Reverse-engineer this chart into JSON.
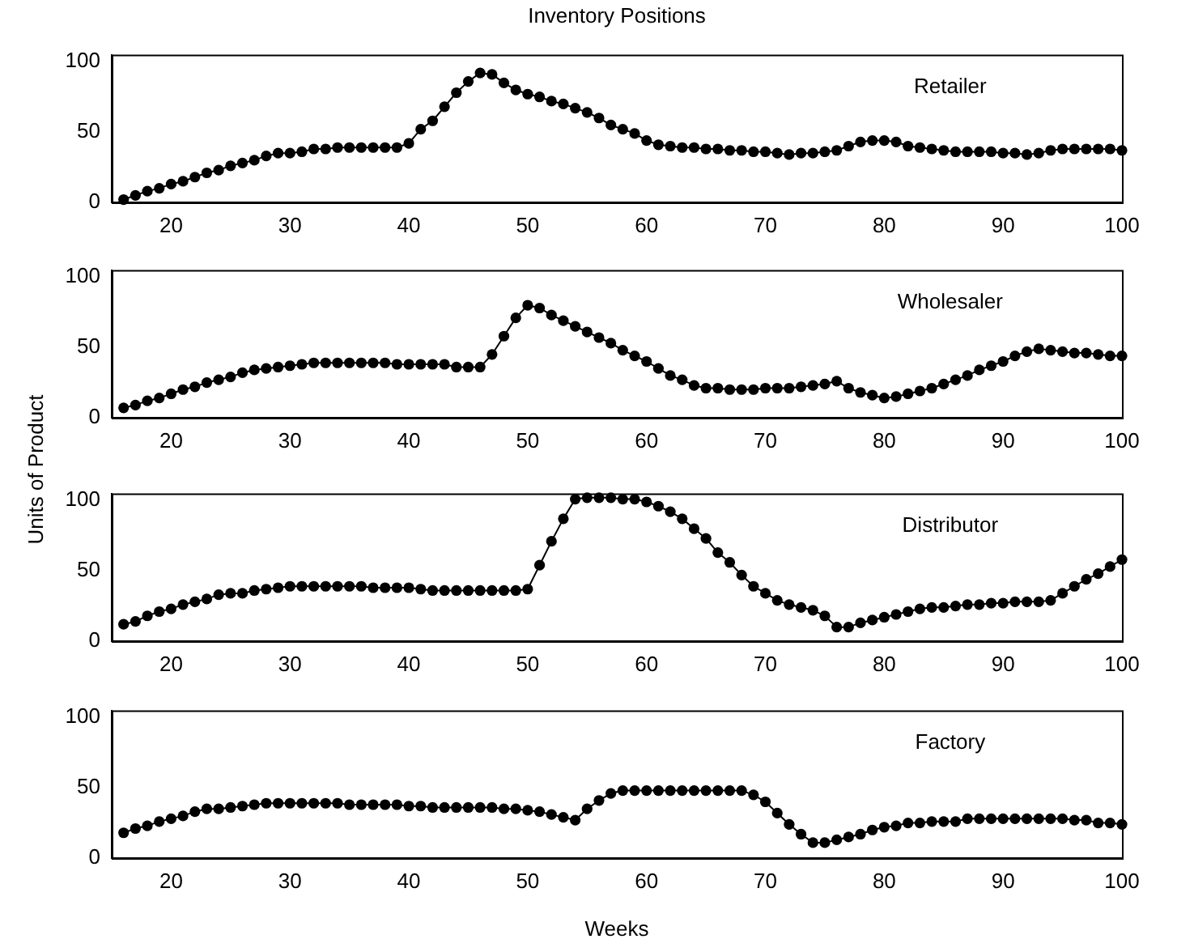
{
  "chart_data": [
    {
      "type": "line",
      "title": "Inventory Positions",
      "annotations": [
        "Retailer"
      ],
      "marker": "circle",
      "xlim": [
        15,
        100
      ],
      "ylim": [
        0,
        105
      ],
      "xticks": [
        20,
        30,
        40,
        50,
        60,
        70,
        80,
        90,
        100
      ],
      "yticks": [
        0,
        50,
        100
      ],
      "x": [
        16,
        17,
        18,
        19,
        20,
        21,
        22,
        23,
        24,
        25,
        26,
        27,
        28,
        29,
        30,
        31,
        32,
        33,
        34,
        35,
        36,
        37,
        38,
        39,
        40,
        41,
        42,
        43,
        44,
        45,
        46,
        47,
        48,
        49,
        50,
        51,
        52,
        53,
        54,
        55,
        56,
        57,
        58,
        59,
        60,
        61,
        62,
        63,
        64,
        65,
        66,
        67,
        68,
        69,
        70,
        71,
        72,
        73,
        74,
        75,
        76,
        77,
        78,
        79,
        80,
        81,
        82,
        83,
        84,
        85,
        86,
        87,
        88,
        89,
        90,
        91,
        92,
        93,
        94,
        95,
        96,
        97,
        98,
        99,
        100
      ],
      "series": [
        {
          "color": "#000000",
          "values": [
            2,
            5,
            8,
            10,
            13,
            15,
            18,
            21,
            23,
            26,
            28,
            30,
            33,
            35,
            35,
            36,
            38,
            38,
            39,
            39,
            39,
            39,
            39,
            39,
            42,
            52,
            58,
            68,
            78,
            86,
            92,
            91,
            85,
            80,
            77,
            75,
            72,
            70,
            67,
            64,
            60,
            55,
            52,
            49,
            44,
            41,
            40,
            39,
            39,
            38,
            38,
            37,
            37,
            36,
            36,
            35,
            34,
            35,
            35,
            36,
            37,
            40,
            43,
            44,
            44,
            43,
            40,
            39,
            38,
            37,
            36,
            36,
            36,
            36,
            35,
            35,
            34,
            35,
            37,
            38,
            38,
            38,
            38,
            38,
            37
          ]
        }
      ]
    },
    {
      "type": "line",
      "ylabel": "Units of Product",
      "annotations": [
        "Wholesaler"
      ],
      "marker": "circle",
      "xlim": [
        15,
        100
      ],
      "ylim": [
        0,
        105
      ],
      "xticks": [
        20,
        30,
        40,
        50,
        60,
        70,
        80,
        90,
        100
      ],
      "yticks": [
        0,
        50,
        100
      ],
      "x": [
        16,
        17,
        18,
        19,
        20,
        21,
        22,
        23,
        24,
        25,
        26,
        27,
        28,
        29,
        30,
        31,
        32,
        33,
        34,
        35,
        36,
        37,
        38,
        39,
        40,
        41,
        42,
        43,
        44,
        45,
        46,
        47,
        48,
        49,
        50,
        51,
        52,
        53,
        54,
        55,
        56,
        57,
        58,
        59,
        60,
        61,
        62,
        63,
        64,
        65,
        66,
        67,
        68,
        69,
        70,
        71,
        72,
        73,
        74,
        75,
        76,
        77,
        78,
        79,
        80,
        81,
        82,
        83,
        84,
        85,
        86,
        87,
        88,
        89,
        90,
        91,
        92,
        93,
        94,
        95,
        96,
        97,
        98,
        99,
        100
      ],
      "series": [
        {
          "color": "#000000",
          "values": [
            7,
            9,
            12,
            14,
            17,
            20,
            22,
            25,
            27,
            29,
            32,
            34,
            35,
            36,
            37,
            38,
            39,
            39,
            39,
            39,
            39,
            39,
            39,
            38,
            38,
            38,
            38,
            38,
            36,
            36,
            36,
            45,
            58,
            71,
            80,
            78,
            73,
            69,
            65,
            61,
            57,
            53,
            48,
            44,
            40,
            35,
            30,
            27,
            23,
            21,
            21,
            20,
            20,
            20,
            21,
            21,
            21,
            22,
            23,
            24,
            26,
            21,
            18,
            16,
            14,
            15,
            17,
            19,
            21,
            24,
            27,
            30,
            34,
            37,
            40,
            44,
            47,
            49,
            48,
            47,
            46,
            46,
            45,
            44,
            44
          ]
        }
      ]
    },
    {
      "type": "line",
      "annotations": [
        "Distributor"
      ],
      "marker": "circle",
      "xlim": [
        15,
        100
      ],
      "ylim": [
        0,
        105
      ],
      "xticks": [
        20,
        30,
        40,
        50,
        60,
        70,
        80,
        90,
        100
      ],
      "yticks": [
        0,
        50,
        100
      ],
      "x": [
        16,
        17,
        18,
        19,
        20,
        21,
        22,
        23,
        24,
        25,
        26,
        27,
        28,
        29,
        30,
        31,
        32,
        33,
        34,
        35,
        36,
        37,
        38,
        39,
        40,
        41,
        42,
        43,
        44,
        45,
        46,
        47,
        48,
        49,
        50,
        51,
        52,
        53,
        54,
        55,
        56,
        57,
        58,
        59,
        60,
        61,
        62,
        63,
        64,
        65,
        66,
        67,
        68,
        69,
        70,
        71,
        72,
        73,
        74,
        75,
        76,
        77,
        78,
        79,
        80,
        81,
        82,
        83,
        84,
        85,
        86,
        87,
        88,
        89,
        90,
        91,
        92,
        93,
        94,
        95,
        96,
        97,
        98,
        99,
        100
      ],
      "series": [
        {
          "color": "#000000",
          "values": [
            12,
            14,
            18,
            21,
            23,
            26,
            28,
            30,
            33,
            34,
            34,
            36,
            37,
            38,
            39,
            39,
            39,
            39,
            39,
            39,
            39,
            38,
            38,
            38,
            38,
            37,
            36,
            36,
            36,
            36,
            36,
            36,
            36,
            36,
            37,
            54,
            71,
            87,
            101,
            102,
            102,
            102,
            101,
            101,
            99,
            96,
            92,
            87,
            80,
            73,
            63,
            56,
            47,
            39,
            34,
            29,
            26,
            24,
            22,
            18,
            10,
            10,
            13,
            15,
            17,
            19,
            21,
            23,
            24,
            24,
            25,
            26,
            26,
            27,
            27,
            28,
            28,
            28,
            29,
            34,
            39,
            44,
            48,
            53,
            58
          ]
        }
      ]
    },
    {
      "type": "line",
      "xlabel": "Weeks",
      "annotations": [
        "Factory"
      ],
      "marker": "circle",
      "xlim": [
        15,
        100
      ],
      "ylim": [
        0,
        105
      ],
      "xticks": [
        20,
        30,
        40,
        50,
        60,
        70,
        80,
        90,
        100
      ],
      "yticks": [
        0,
        50,
        100
      ],
      "x": [
        16,
        17,
        18,
        19,
        20,
        21,
        22,
        23,
        24,
        25,
        26,
        27,
        28,
        29,
        30,
        31,
        32,
        33,
        34,
        35,
        36,
        37,
        38,
        39,
        40,
        41,
        42,
        43,
        44,
        45,
        46,
        47,
        48,
        49,
        50,
        51,
        52,
        53,
        54,
        55,
        56,
        57,
        58,
        59,
        60,
        61,
        62,
        63,
        64,
        65,
        66,
        67,
        68,
        69,
        70,
        71,
        72,
        73,
        74,
        75,
        76,
        77,
        78,
        79,
        80,
        81,
        82,
        83,
        84,
        85,
        86,
        87,
        88,
        89,
        90,
        91,
        92,
        93,
        94,
        95,
        96,
        97,
        98,
        99,
        100
      ],
      "series": [
        {
          "color": "#000000",
          "values": [
            18,
            21,
            23,
            26,
            28,
            30,
            33,
            35,
            35,
            36,
            37,
            38,
            39,
            39,
            39,
            39,
            39,
            39,
            39,
            38,
            38,
            38,
            38,
            38,
            37,
            37,
            36,
            36,
            36,
            36,
            36,
            36,
            35,
            35,
            34,
            33,
            31,
            29,
            27,
            35,
            41,
            46,
            48,
            48,
            48,
            48,
            48,
            48,
            48,
            48,
            48,
            48,
            48,
            45,
            40,
            32,
            24,
            17,
            11,
            11,
            13,
            15,
            17,
            20,
            22,
            23,
            25,
            25,
            26,
            26,
            26,
            28,
            28,
            28,
            28,
            28,
            28,
            28,
            28,
            28,
            27,
            27,
            25,
            25,
            24
          ]
        }
      ]
    }
  ]
}
